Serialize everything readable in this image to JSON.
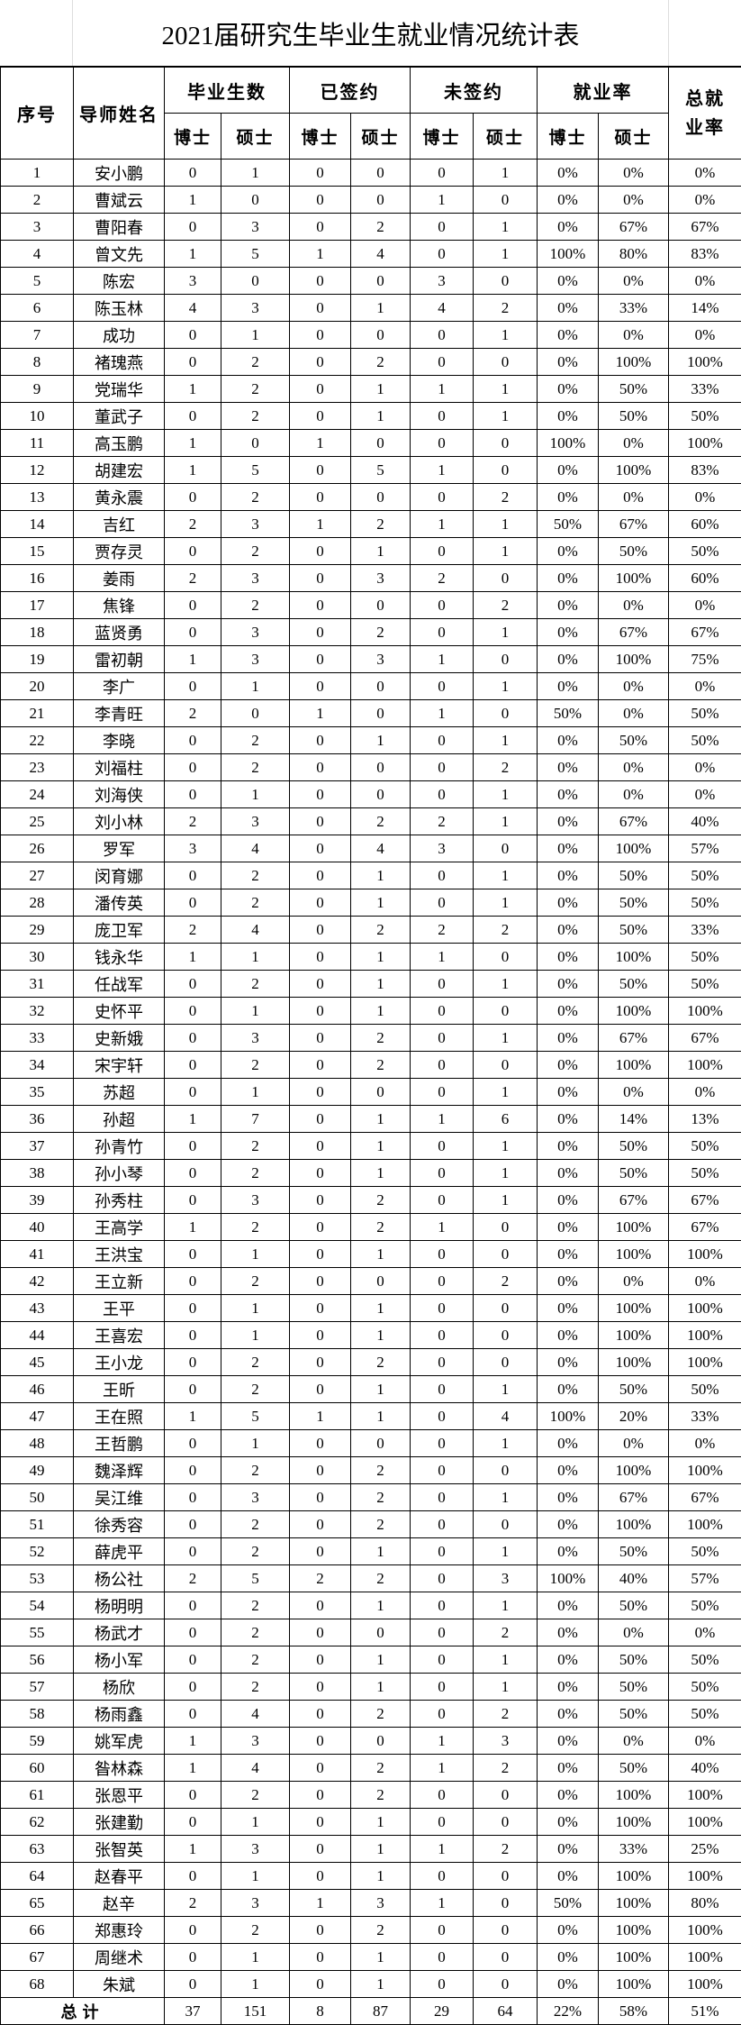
{
  "title": "2021届研究生毕业生就业情况统计表",
  "headers": {
    "seq": "序号",
    "advisor": "导师姓名",
    "graduates": "毕业生数",
    "signed": "已签约",
    "unsigned": "未签约",
    "rate": "就业率",
    "total_rate": "总就业率",
    "phd": "博士",
    "master": "硕士"
  },
  "rows": [
    [
      "1",
      "安小鹏",
      "0",
      "1",
      "0",
      "0",
      "0",
      "1",
      "0%",
      "0%",
      "0%"
    ],
    [
      "2",
      "曹斌云",
      "1",
      "0",
      "0",
      "0",
      "1",
      "0",
      "0%",
      "0%",
      "0%"
    ],
    [
      "3",
      "曹阳春",
      "0",
      "3",
      "0",
      "2",
      "0",
      "1",
      "0%",
      "67%",
      "67%"
    ],
    [
      "4",
      "曾文先",
      "1",
      "5",
      "1",
      "4",
      "0",
      "1",
      "100%",
      "80%",
      "83%"
    ],
    [
      "5",
      "陈宏",
      "3",
      "0",
      "0",
      "0",
      "3",
      "0",
      "0%",
      "0%",
      "0%"
    ],
    [
      "6",
      "陈玉林",
      "4",
      "3",
      "0",
      "1",
      "4",
      "2",
      "0%",
      "33%",
      "14%"
    ],
    [
      "7",
      "成功",
      "0",
      "1",
      "0",
      "0",
      "0",
      "1",
      "0%",
      "0%",
      "0%"
    ],
    [
      "8",
      "褚瑰燕",
      "0",
      "2",
      "0",
      "2",
      "0",
      "0",
      "0%",
      "100%",
      "100%"
    ],
    [
      "9",
      "党瑞华",
      "1",
      "2",
      "0",
      "1",
      "1",
      "1",
      "0%",
      "50%",
      "33%"
    ],
    [
      "10",
      "董武子",
      "0",
      "2",
      "0",
      "1",
      "0",
      "1",
      "0%",
      "50%",
      "50%"
    ],
    [
      "11",
      "高玉鹏",
      "1",
      "0",
      "1",
      "0",
      "0",
      "0",
      "100%",
      "0%",
      "100%"
    ],
    [
      "12",
      "胡建宏",
      "1",
      "5",
      "0",
      "5",
      "1",
      "0",
      "0%",
      "100%",
      "83%"
    ],
    [
      "13",
      "黄永震",
      "0",
      "2",
      "0",
      "0",
      "0",
      "2",
      "0%",
      "0%",
      "0%"
    ],
    [
      "14",
      "吉红",
      "2",
      "3",
      "1",
      "2",
      "1",
      "1",
      "50%",
      "67%",
      "60%"
    ],
    [
      "15",
      "贾存灵",
      "0",
      "2",
      "0",
      "1",
      "0",
      "1",
      "0%",
      "50%",
      "50%"
    ],
    [
      "16",
      "姜雨",
      "2",
      "3",
      "0",
      "3",
      "2",
      "0",
      "0%",
      "100%",
      "60%"
    ],
    [
      "17",
      "焦锋",
      "0",
      "2",
      "0",
      "0",
      "0",
      "2",
      "0%",
      "0%",
      "0%"
    ],
    [
      "18",
      "蓝贤勇",
      "0",
      "3",
      "0",
      "2",
      "0",
      "1",
      "0%",
      "67%",
      "67%"
    ],
    [
      "19",
      "雷初朝",
      "1",
      "3",
      "0",
      "3",
      "1",
      "0",
      "0%",
      "100%",
      "75%"
    ],
    [
      "20",
      "李广",
      "0",
      "1",
      "0",
      "0",
      "0",
      "1",
      "0%",
      "0%",
      "0%"
    ],
    [
      "21",
      "李青旺",
      "2",
      "0",
      "1",
      "0",
      "1",
      "0",
      "50%",
      "0%",
      "50%"
    ],
    [
      "22",
      "李晓",
      "0",
      "2",
      "0",
      "1",
      "0",
      "1",
      "0%",
      "50%",
      "50%"
    ],
    [
      "23",
      "刘福柱",
      "0",
      "2",
      "0",
      "0",
      "0",
      "2",
      "0%",
      "0%",
      "0%"
    ],
    [
      "24",
      "刘海侠",
      "0",
      "1",
      "0",
      "0",
      "0",
      "1",
      "0%",
      "0%",
      "0%"
    ],
    [
      "25",
      "刘小林",
      "2",
      "3",
      "0",
      "2",
      "2",
      "1",
      "0%",
      "67%",
      "40%"
    ],
    [
      "26",
      "罗军",
      "3",
      "4",
      "0",
      "4",
      "3",
      "0",
      "0%",
      "100%",
      "57%"
    ],
    [
      "27",
      "闵育娜",
      "0",
      "2",
      "0",
      "1",
      "0",
      "1",
      "0%",
      "50%",
      "50%"
    ],
    [
      "28",
      "潘传英",
      "0",
      "2",
      "0",
      "1",
      "0",
      "1",
      "0%",
      "50%",
      "50%"
    ],
    [
      "29",
      "庞卫军",
      "2",
      "4",
      "0",
      "2",
      "2",
      "2",
      "0%",
      "50%",
      "33%"
    ],
    [
      "30",
      "钱永华",
      "1",
      "1",
      "0",
      "1",
      "1",
      "0",
      "0%",
      "100%",
      "50%"
    ],
    [
      "31",
      "任战军",
      "0",
      "2",
      "0",
      "1",
      "0",
      "1",
      "0%",
      "50%",
      "50%"
    ],
    [
      "32",
      "史怀平",
      "0",
      "1",
      "0",
      "1",
      "0",
      "0",
      "0%",
      "100%",
      "100%"
    ],
    [
      "33",
      "史新娥",
      "0",
      "3",
      "0",
      "2",
      "0",
      "1",
      "0%",
      "67%",
      "67%"
    ],
    [
      "34",
      "宋宇轩",
      "0",
      "2",
      "0",
      "2",
      "0",
      "0",
      "0%",
      "100%",
      "100%"
    ],
    [
      "35",
      "苏超",
      "0",
      "1",
      "0",
      "0",
      "0",
      "1",
      "0%",
      "0%",
      "0%"
    ],
    [
      "36",
      "孙超",
      "1",
      "7",
      "0",
      "1",
      "1",
      "6",
      "0%",
      "14%",
      "13%"
    ],
    [
      "37",
      "孙青竹",
      "0",
      "2",
      "0",
      "1",
      "0",
      "1",
      "0%",
      "50%",
      "50%"
    ],
    [
      "38",
      "孙小琴",
      "0",
      "2",
      "0",
      "1",
      "0",
      "1",
      "0%",
      "50%",
      "50%"
    ],
    [
      "39",
      "孙秀柱",
      "0",
      "3",
      "0",
      "2",
      "0",
      "1",
      "0%",
      "67%",
      "67%"
    ],
    [
      "40",
      "王高学",
      "1",
      "2",
      "0",
      "2",
      "1",
      "0",
      "0%",
      "100%",
      "67%"
    ],
    [
      "41",
      "王洪宝",
      "0",
      "1",
      "0",
      "1",
      "0",
      "0",
      "0%",
      "100%",
      "100%"
    ],
    [
      "42",
      "王立新",
      "0",
      "2",
      "0",
      "0",
      "0",
      "2",
      "0%",
      "0%",
      "0%"
    ],
    [
      "43",
      "王平",
      "0",
      "1",
      "0",
      "1",
      "0",
      "0",
      "0%",
      "100%",
      "100%"
    ],
    [
      "44",
      "王喜宏",
      "0",
      "1",
      "0",
      "1",
      "0",
      "0",
      "0%",
      "100%",
      "100%"
    ],
    [
      "45",
      "王小龙",
      "0",
      "2",
      "0",
      "2",
      "0",
      "0",
      "0%",
      "100%",
      "100%"
    ],
    [
      "46",
      "王昕",
      "0",
      "2",
      "0",
      "1",
      "0",
      "1",
      "0%",
      "50%",
      "50%"
    ],
    [
      "47",
      "王在照",
      "1",
      "5",
      "1",
      "1",
      "0",
      "4",
      "100%",
      "20%",
      "33%"
    ],
    [
      "48",
      "王哲鹏",
      "0",
      "1",
      "0",
      "0",
      "0",
      "1",
      "0%",
      "0%",
      "0%"
    ],
    [
      "49",
      "魏泽辉",
      "0",
      "2",
      "0",
      "2",
      "0",
      "0",
      "0%",
      "100%",
      "100%"
    ],
    [
      "50",
      "吴江维",
      "0",
      "3",
      "0",
      "2",
      "0",
      "1",
      "0%",
      "67%",
      "67%"
    ],
    [
      "51",
      "徐秀容",
      "0",
      "2",
      "0",
      "2",
      "0",
      "0",
      "0%",
      "100%",
      "100%"
    ],
    [
      "52",
      "薛虎平",
      "0",
      "2",
      "0",
      "1",
      "0",
      "1",
      "0%",
      "50%",
      "50%"
    ],
    [
      "53",
      "杨公社",
      "2",
      "5",
      "2",
      "2",
      "0",
      "3",
      "100%",
      "40%",
      "57%"
    ],
    [
      "54",
      "杨明明",
      "0",
      "2",
      "0",
      "1",
      "0",
      "1",
      "0%",
      "50%",
      "50%"
    ],
    [
      "55",
      "杨武才",
      "0",
      "2",
      "0",
      "0",
      "0",
      "2",
      "0%",
      "0%",
      "0%"
    ],
    [
      "56",
      "杨小军",
      "0",
      "2",
      "0",
      "1",
      "0",
      "1",
      "0%",
      "50%",
      "50%"
    ],
    [
      "57",
      "杨欣",
      "0",
      "2",
      "0",
      "1",
      "0",
      "1",
      "0%",
      "50%",
      "50%"
    ],
    [
      "58",
      "杨雨鑫",
      "0",
      "4",
      "0",
      "2",
      "0",
      "2",
      "0%",
      "50%",
      "50%"
    ],
    [
      "59",
      "姚军虎",
      "1",
      "3",
      "0",
      "0",
      "1",
      "3",
      "0%",
      "0%",
      "0%"
    ],
    [
      "60",
      "昝林森",
      "1",
      "4",
      "0",
      "2",
      "1",
      "2",
      "0%",
      "50%",
      "40%"
    ],
    [
      "61",
      "张恩平",
      "0",
      "2",
      "0",
      "2",
      "0",
      "0",
      "0%",
      "100%",
      "100%"
    ],
    [
      "62",
      "张建勤",
      "0",
      "1",
      "0",
      "1",
      "0",
      "0",
      "0%",
      "100%",
      "100%"
    ],
    [
      "63",
      "张智英",
      "1",
      "3",
      "0",
      "1",
      "1",
      "2",
      "0%",
      "33%",
      "25%"
    ],
    [
      "64",
      "赵春平",
      "0",
      "1",
      "0",
      "1",
      "0",
      "0",
      "0%",
      "100%",
      "100%"
    ],
    [
      "65",
      "赵辛",
      "2",
      "3",
      "1",
      "3",
      "1",
      "0",
      "50%",
      "100%",
      "80%"
    ],
    [
      "66",
      "郑惠玲",
      "0",
      "2",
      "0",
      "2",
      "0",
      "0",
      "0%",
      "100%",
      "100%"
    ],
    [
      "67",
      "周继术",
      "0",
      "1",
      "0",
      "1",
      "0",
      "0",
      "0%",
      "100%",
      "100%"
    ],
    [
      "68",
      "朱斌",
      "0",
      "1",
      "0",
      "1",
      "0",
      "0",
      "0%",
      "100%",
      "100%"
    ]
  ],
  "total": {
    "label": "总计",
    "values": [
      "37",
      "151",
      "8",
      "87",
      "29",
      "64",
      "22%",
      "58%",
      "51%"
    ]
  }
}
